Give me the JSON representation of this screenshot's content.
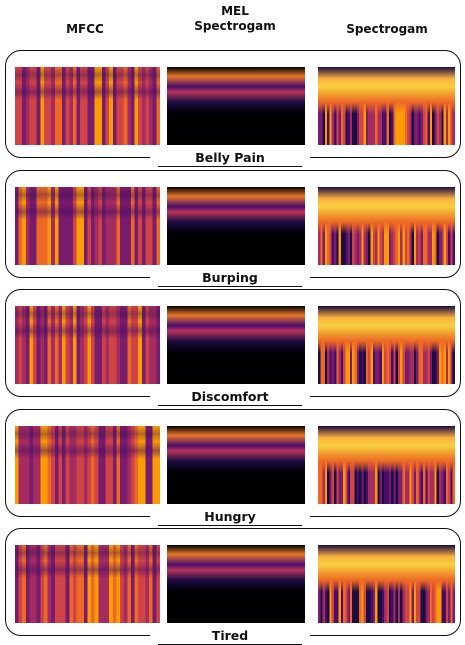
{
  "headers": [
    "MFCC",
    "MEL Spectrogam",
    "Spectrogam"
  ],
  "rows": [
    {
      "label": "Belly Pain"
    },
    {
      "label": "Burping"
    },
    {
      "label": "Discomfort"
    },
    {
      "label": "Hungry"
    },
    {
      "label": "Tired"
    }
  ]
}
